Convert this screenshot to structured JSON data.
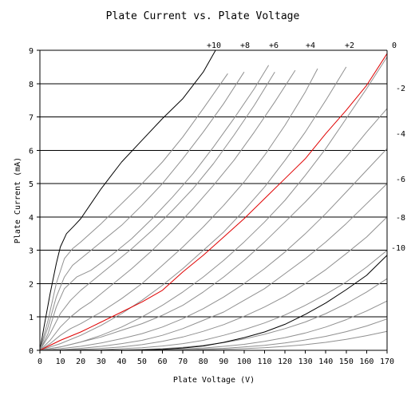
{
  "chart_data": {
    "type": "line",
    "title": "Plate Current vs. Plate Voltage",
    "xlabel": "Plate Voltage (V)",
    "ylabel": "Plate Current (mA)",
    "xlim": [
      0,
      170
    ],
    "ylim": [
      0,
      9
    ],
    "x_ticks": [
      0,
      10,
      20,
      30,
      40,
      50,
      60,
      70,
      80,
      90,
      100,
      110,
      120,
      130,
      140,
      150,
      160,
      170
    ],
    "y_ticks": [
      0,
      1,
      2,
      3,
      4,
      5,
      6,
      7,
      8,
      9
    ],
    "grid": "horizontal",
    "curve_labels_top": [
      "+10",
      "+8",
      "+6",
      "+4",
      "+2",
      "0"
    ],
    "curve_labels_right": [
      "-2",
      "-4",
      "-6",
      "-8",
      "-10"
    ],
    "colors": {
      "highlight": "#e00000",
      "bounds": "#000000",
      "normal": "#909090",
      "grid": "#000000"
    },
    "series": [
      {
        "name": "+10",
        "color": "#000000",
        "x": [
          0,
          2,
          5,
          8,
          10,
          13,
          17,
          20,
          25,
          30,
          35,
          40,
          50,
          60,
          70,
          80,
          86
        ],
        "y": [
          0,
          0.7,
          1.7,
          2.6,
          3.1,
          3.5,
          3.75,
          3.95,
          4.4,
          4.85,
          5.25,
          5.65,
          6.3,
          6.95,
          7.55,
          8.35,
          9.0
        ]
      },
      {
        "name": "",
        "color": "#909090",
        "x": [
          0,
          4,
          8,
          12,
          16,
          20,
          30,
          40,
          50,
          60,
          70,
          80,
          92
        ],
        "y": [
          0,
          0.9,
          2.0,
          2.75,
          3.05,
          3.25,
          3.8,
          4.4,
          5.0,
          5.65,
          6.4,
          7.25,
          8.3
        ]
      },
      {
        "name": "+8",
        "color": "#909090",
        "x": [
          0,
          4,
          8,
          12,
          16,
          20,
          30,
          40,
          50,
          60,
          70,
          80,
          90,
          100
        ],
        "y": [
          0,
          0.7,
          1.6,
          2.2,
          2.55,
          2.75,
          3.25,
          3.75,
          4.35,
          5.0,
          5.75,
          6.55,
          7.4,
          8.35
        ]
      },
      {
        "name": "",
        "color": "#909090",
        "x": [
          0,
          4,
          8,
          12,
          18,
          25,
          35,
          45,
          55,
          65,
          75,
          85,
          95,
          105,
          112
        ],
        "y": [
          0,
          0.5,
          1.3,
          1.85,
          2.2,
          2.4,
          2.85,
          3.35,
          3.95,
          4.6,
          5.3,
          6.1,
          6.95,
          7.85,
          8.55
        ]
      },
      {
        "name": "+6",
        "color": "#909090",
        "x": [
          0,
          5,
          10,
          15,
          20,
          25,
          35,
          45,
          55,
          65,
          75,
          85,
          95,
          105,
          115
        ],
        "y": [
          0,
          0.5,
          1.1,
          1.5,
          1.8,
          2.05,
          2.55,
          3.05,
          3.6,
          4.2,
          4.85,
          5.6,
          6.45,
          7.35,
          8.35
        ]
      },
      {
        "name": "",
        "color": "#909090",
        "x": [
          0,
          5,
          10,
          15,
          20,
          25,
          35,
          45,
          55,
          65,
          75,
          85,
          95,
          105,
          115,
          125
        ],
        "y": [
          0,
          0.3,
          0.7,
          1.0,
          1.25,
          1.45,
          1.95,
          2.45,
          3.0,
          3.6,
          4.25,
          4.95,
          5.7,
          6.55,
          7.45,
          8.4
        ]
      },
      {
        "name": "+4",
        "color": "#909090",
        "x": [
          0,
          5,
          10,
          15,
          20,
          30,
          40,
          50,
          60,
          70,
          80,
          90,
          100,
          110,
          120,
          130,
          136
        ],
        "y": [
          0,
          0.2,
          0.45,
          0.65,
          0.8,
          1.15,
          1.55,
          2.0,
          2.55,
          3.1,
          3.7,
          4.35,
          5.05,
          5.85,
          6.75,
          7.75,
          8.45
        ]
      },
      {
        "name": "",
        "color": "#909090",
        "x": [
          0,
          10,
          20,
          30,
          40,
          50,
          60,
          70,
          80,
          90,
          100,
          110,
          120,
          130,
          140,
          150
        ],
        "y": [
          0,
          0.2,
          0.45,
          0.75,
          1.1,
          1.5,
          1.95,
          2.45,
          3.0,
          3.55,
          4.2,
          4.9,
          5.7,
          6.55,
          7.5,
          8.5
        ]
      },
      {
        "name": "+2",
        "color": "#909090",
        "x": [
          0,
          10,
          20,
          30,
          40,
          50,
          60,
          70,
          80,
          90,
          100,
          110,
          120,
          130,
          140,
          150,
          160,
          170
        ],
        "y": [
          0,
          0.1,
          0.25,
          0.45,
          0.7,
          1.0,
          1.35,
          1.75,
          2.2,
          2.7,
          3.25,
          3.85,
          4.5,
          5.25,
          6.05,
          6.95,
          7.85,
          8.8
        ]
      },
      {
        "name": "0",
        "color": "#e00000",
        "x": [
          0,
          10,
          20,
          25,
          30,
          40,
          50,
          60,
          70,
          80,
          90,
          100,
          110,
          120,
          130,
          140,
          150,
          160,
          170
        ],
        "y": [
          0,
          0.3,
          0.55,
          0.7,
          0.85,
          1.15,
          1.45,
          1.8,
          2.35,
          2.85,
          3.4,
          3.95,
          4.55,
          5.15,
          5.75,
          6.5,
          7.2,
          7.95,
          8.9
        ]
      },
      {
        "name": "",
        "color": "#909090",
        "x": [
          0,
          10,
          20,
          30,
          40,
          50,
          60,
          70,
          80,
          90,
          100,
          110,
          120,
          130,
          140,
          150,
          160,
          170
        ],
        "y": [
          0,
          0.1,
          0.25,
          0.4,
          0.6,
          0.8,
          1.05,
          1.35,
          1.75,
          2.2,
          2.7,
          3.25,
          3.85,
          4.45,
          5.1,
          5.8,
          6.55,
          7.25
        ]
      },
      {
        "name": "-2",
        "color": "#909090",
        "x": [
          0,
          10,
          20,
          30,
          40,
          50,
          60,
          70,
          80,
          90,
          100,
          110,
          120,
          130,
          140,
          150,
          160,
          170
        ],
        "y": [
          0,
          0.05,
          0.12,
          0.22,
          0.35,
          0.5,
          0.7,
          0.95,
          1.25,
          1.6,
          2.0,
          2.45,
          2.95,
          3.5,
          4.1,
          4.75,
          5.4,
          6.05
        ]
      },
      {
        "name": "",
        "color": "#909090",
        "x": [
          0,
          10,
          20,
          30,
          40,
          50,
          60,
          70,
          80,
          90,
          100,
          110,
          120,
          130,
          140,
          150,
          160,
          170
        ],
        "y": [
          0,
          0.02,
          0.06,
          0.12,
          0.2,
          0.3,
          0.45,
          0.65,
          0.9,
          1.15,
          1.5,
          1.85,
          2.3,
          2.75,
          3.25,
          3.8,
          4.4,
          5.0
        ]
      },
      {
        "name": "-4",
        "color": "#909090",
        "x": [
          0,
          20,
          30,
          40,
          50,
          60,
          70,
          80,
          90,
          100,
          110,
          120,
          130,
          140,
          150,
          160,
          170
        ],
        "y": [
          0,
          0.03,
          0.06,
          0.1,
          0.17,
          0.27,
          0.4,
          0.57,
          0.77,
          1.02,
          1.3,
          1.62,
          2.0,
          2.42,
          2.9,
          3.4,
          4.0
        ]
      },
      {
        "name": "",
        "color": "#909090",
        "x": [
          0,
          30,
          40,
          50,
          60,
          70,
          80,
          90,
          100,
          110,
          120,
          130,
          140,
          150,
          160,
          170
        ],
        "y": [
          0,
          0.02,
          0.05,
          0.08,
          0.13,
          0.2,
          0.3,
          0.45,
          0.62,
          0.82,
          1.06,
          1.35,
          1.68,
          2.05,
          2.5,
          3.0
        ]
      },
      {
        "name": "-6",
        "color": "#909090",
        "x": [
          0,
          40,
          50,
          60,
          70,
          80,
          90,
          100,
          110,
          120,
          130,
          140,
          150,
          160,
          170
        ],
        "y": [
          0,
          0.01,
          0.03,
          0.05,
          0.09,
          0.15,
          0.23,
          0.34,
          0.48,
          0.65,
          0.85,
          1.1,
          1.4,
          1.75,
          2.15
        ]
      },
      {
        "name": "",
        "color": "#909090",
        "x": [
          0,
          50,
          60,
          70,
          80,
          90,
          100,
          110,
          120,
          130,
          140,
          150,
          160,
          170
        ],
        "y": [
          0,
          0.01,
          0.02,
          0.04,
          0.07,
          0.12,
          0.18,
          0.27,
          0.38,
          0.52,
          0.7,
          0.92,
          1.18,
          1.48
        ]
      },
      {
        "name": "-8",
        "color": "#909090",
        "x": [
          0,
          60,
          70,
          80,
          90,
          100,
          110,
          120,
          130,
          140,
          150,
          160,
          170
        ],
        "y": [
          0,
          0.01,
          0.02,
          0.04,
          0.06,
          0.1,
          0.15,
          0.22,
          0.31,
          0.42,
          0.56,
          0.73,
          0.94
        ]
      },
      {
        "name": "",
        "color": "#909090",
        "x": [
          0,
          70,
          80,
          90,
          100,
          110,
          120,
          130,
          140,
          150,
          160,
          170
        ],
        "y": [
          0,
          0.01,
          0.02,
          0.03,
          0.05,
          0.08,
          0.12,
          0.17,
          0.24,
          0.33,
          0.44,
          0.57
        ]
      },
      {
        "name": "-10",
        "color": "#000000",
        "x": [
          0,
          50,
          60,
          70,
          80,
          90,
          100,
          110,
          120,
          130,
          140,
          150,
          160,
          170
        ],
        "y": [
          0,
          0.01,
          0.03,
          0.07,
          0.13,
          0.24,
          0.38,
          0.55,
          0.78,
          1.08,
          1.42,
          1.82,
          2.25,
          2.85
        ]
      }
    ]
  }
}
